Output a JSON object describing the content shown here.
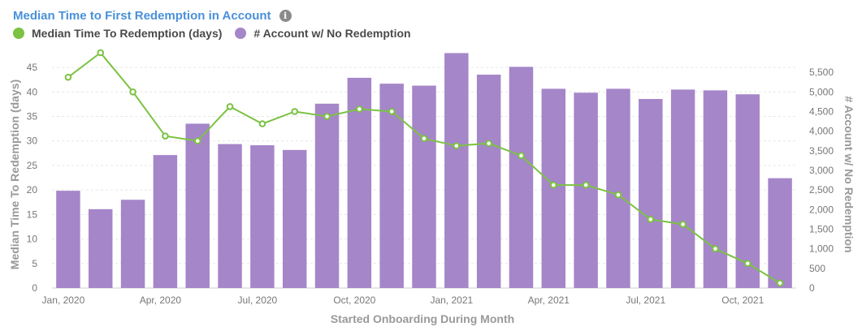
{
  "title": "Median Time to First Redemption in Account",
  "info_icon": "info-icon",
  "legend": [
    {
      "label": "Median Time To Redemption (days)",
      "color": "#7cc243"
    },
    {
      "label": "# Account w/ No Redemption",
      "color": "#a586c9"
    }
  ],
  "chart_data": {
    "type": "bar",
    "title": "Median Time to First Redemption in Account",
    "xlabel": "Started Onboarding During Month",
    "ylabel_left": "Median Time To Redemption (days)",
    "ylabel_right": "# Account w/ No Redemption",
    "categories": [
      "Jan, 2020",
      "Feb, 2020",
      "Mar, 2020",
      "Apr, 2020",
      "May, 2020",
      "Jun, 2020",
      "Jul, 2020",
      "Aug, 2020",
      "Sep, 2020",
      "Oct, 2020",
      "Nov, 2020",
      "Dec, 2020",
      "Jan, 2021",
      "Feb, 2021",
      "Mar, 2021",
      "Apr, 2021",
      "May, 2021",
      "Jun, 2021",
      "Jul, 2021",
      "Aug, 2021",
      "Sep, 2021",
      "Oct, 2021",
      "Nov, 2021"
    ],
    "x_tick_labels": [
      "Jan, 2020",
      "",
      "",
      "Apr, 2020",
      "",
      "",
      "Jul, 2020",
      "",
      "",
      "Oct, 2020",
      "",
      "",
      "Jan, 2021",
      "",
      "",
      "Apr, 2021",
      "",
      "",
      "Jul, 2021",
      "",
      "",
      "Oct, 2021",
      ""
    ],
    "series": [
      {
        "name": "# Account w/ No Redemption",
        "type": "bar",
        "axis": "right",
        "color": "#a586c9",
        "values": [
          2480,
          2010,
          2250,
          3390,
          4190,
          3670,
          3640,
          3520,
          4700,
          5360,
          5210,
          5160,
          5990,
          5440,
          5640,
          5080,
          4980,
          5080,
          4820,
          5060,
          5040,
          4940,
          2800
        ]
      },
      {
        "name": "Median Time To Redemption (days)",
        "type": "line",
        "axis": "left",
        "color": "#7cc243",
        "values": [
          43,
          48,
          40,
          31,
          30,
          37,
          33.5,
          36,
          35,
          36.5,
          36,
          30.5,
          29,
          29.5,
          27,
          21,
          21,
          19,
          14,
          13,
          8,
          5,
          1
        ]
      }
    ],
    "ylim_left": [
      0,
      47
    ],
    "yticks_left": [
      0,
      5,
      10,
      15,
      20,
      25,
      30,
      35,
      40,
      45
    ],
    "ylim_right": [
      0,
      5875
    ],
    "yticks_right": [
      "0",
      "500",
      "1,000",
      "1,500",
      "2,000",
      "2,500",
      "3,000",
      "3,500",
      "4,000",
      "4,500",
      "5,000",
      "5,500"
    ],
    "grid": true
  }
}
